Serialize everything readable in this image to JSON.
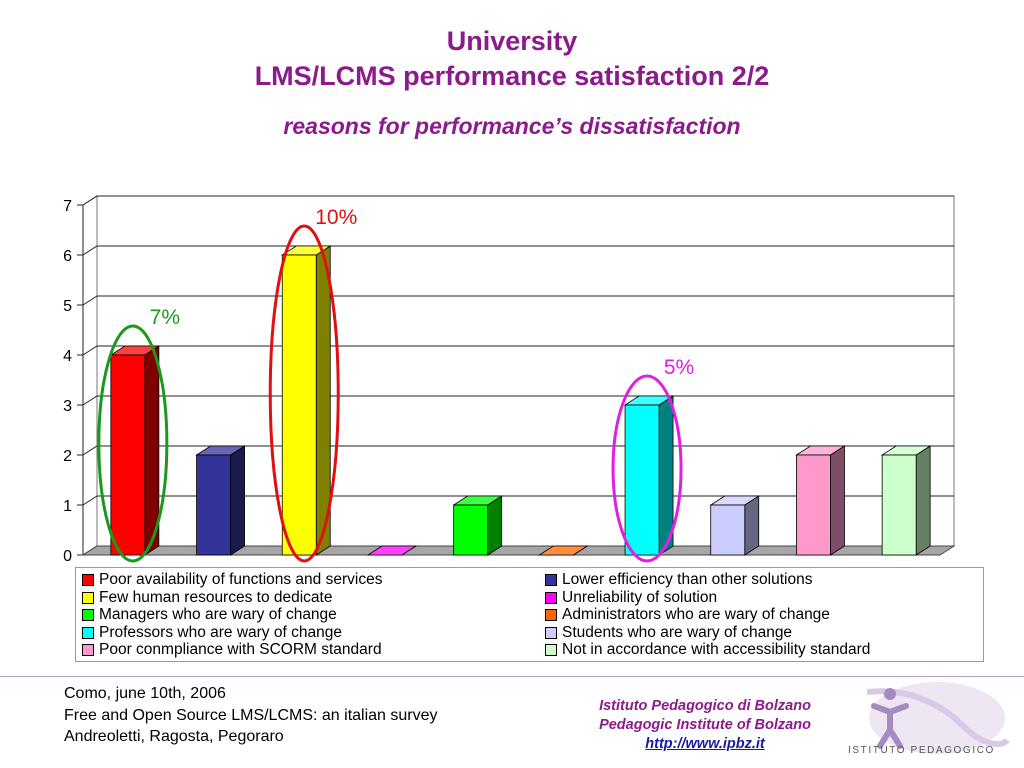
{
  "slide": {
    "title_line1": "University",
    "title_line2": "LMS/LCMS performance satisfaction 2/2",
    "subtitle": "reasons for performance’s dissatisfaction",
    "title_color": "#8B1A8B"
  },
  "chart_data": {
    "type": "bar",
    "style": "3d-column",
    "categories": [
      "Poor availability of functions and services",
      "Lower efficiency than other solutions",
      "Few human resources to dedicate",
      "Unreliability of solution",
      "Managers who are wary of change",
      "Administrators who are wary of change",
      "Professors who are wary of change",
      "Students who are wary of change",
      "Poor conmpliance with SCORM standard",
      "Not in accordance with accessibility standard"
    ],
    "values": [
      4,
      2,
      6,
      0,
      1,
      0,
      3,
      1,
      2,
      2
    ],
    "colors": [
      "#FF0000",
      "#333399",
      "#FFFF00",
      "#FF00FF",
      "#00FF00",
      "#FF6600",
      "#00FFFF",
      "#CCCCFF",
      "#FF99CC",
      "#CCFFCC"
    ],
    "ylim": [
      0,
      7
    ],
    "yticks": [
      "0",
      "1",
      "2",
      "3",
      "4",
      "5",
      "6",
      "7"
    ],
    "grid": true,
    "legend_position": "bottom",
    "annotations": [
      {
        "text": "7%",
        "category_index": 0,
        "color": "#1a9a1a"
      },
      {
        "text": "10%",
        "category_index": 2,
        "color": "#e01010"
      },
      {
        "text": "5%",
        "category_index": 6,
        "color": "#e020e0"
      }
    ]
  },
  "footer": {
    "left_line1": "Como, june 10th, 2006",
    "left_line2": "Free and Open Source LMS/LCMS: an italian survey",
    "left_line3": "Andreoletti, Ragosta, Pegoraro",
    "inst_line1": "Istituto Pedagogico di Bolzano",
    "inst_line2": "Pedagogic Institute of Bolzano",
    "inst_link": "http://www.ipbz.it",
    "logo_text": "ISTITUTO PEDAGOGICO"
  }
}
